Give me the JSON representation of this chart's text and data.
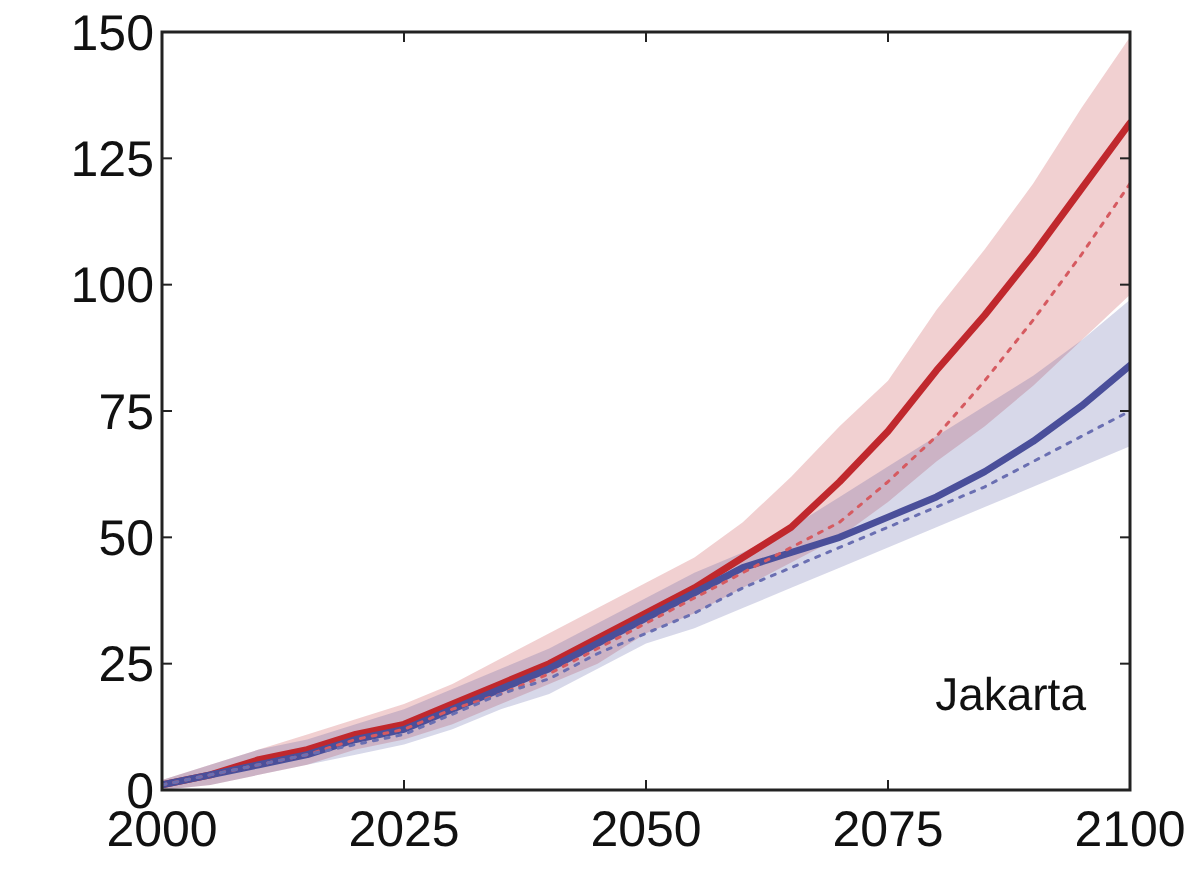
{
  "chart_data": {
    "type": "line",
    "x": [
      2000,
      2005,
      2010,
      2015,
      2020,
      2025,
      2030,
      2035,
      2040,
      2045,
      2050,
      2055,
      2060,
      2065,
      2070,
      2075,
      2080,
      2085,
      2090,
      2095,
      2100
    ],
    "series": [
      {
        "color": "#c0282d",
        "values": [
          1,
          3,
          6,
          8,
          11,
          13,
          17,
          21,
          25,
          30,
          35,
          40,
          46,
          52,
          61,
          71,
          83,
          94,
          106,
          119,
          132
        ],
        "lower": [
          0,
          1,
          3,
          5,
          8,
          10,
          13,
          17,
          21,
          25,
          31,
          35,
          40,
          45,
          50,
          57,
          65,
          72,
          80,
          89,
          98
        ],
        "upper": [
          2,
          5,
          8,
          11,
          14,
          17,
          21,
          26,
          31,
          36,
          41,
          46,
          53,
          62,
          72,
          81,
          95,
          107,
          120,
          135,
          149
        ]
      },
      {
        "color": "#4a4f9a",
        "values": [
          1,
          3,
          5,
          7,
          10,
          12,
          16,
          20,
          24,
          29,
          34,
          39,
          44,
          47,
          50,
          54,
          58,
          63,
          69,
          76,
          84
        ],
        "lower": [
          0,
          1,
          3,
          5,
          7,
          9,
          12,
          16,
          19,
          24,
          29,
          32,
          36,
          40,
          44,
          48,
          52,
          56,
          60,
          64,
          68
        ],
        "upper": [
          2,
          5,
          8,
          10,
          13,
          16,
          20,
          24,
          28,
          33,
          38,
          43,
          47,
          52,
          58,
          64,
          70,
          76,
          82,
          89,
          97
        ]
      },
      {
        "color": "#d65a60",
        "line_style": "dotted",
        "values": [
          1,
          3,
          5,
          7,
          10,
          12,
          16,
          19,
          23,
          28,
          33,
          38,
          43,
          48,
          53,
          61,
          70,
          81,
          93,
          106,
          120
        ]
      },
      {
        "color": "#6a6fb2",
        "line_style": "dotted",
        "values": [
          1,
          3,
          5,
          7,
          9,
          11,
          15,
          19,
          22,
          27,
          31,
          35,
          40,
          44,
          48,
          52,
          56,
          60,
          65,
          70,
          75
        ]
      }
    ],
    "xlim": [
      2000,
      2100
    ],
    "xticks": [
      2000,
      2025,
      2050,
      2075,
      2100
    ],
    "ylim": [
      0,
      150
    ],
    "yticks": [
      0,
      25,
      50,
      75,
      100,
      125,
      150
    ],
    "annotations": [
      "Jakarta"
    ],
    "grid": false,
    "marker": "none",
    "line_style": "solid"
  }
}
